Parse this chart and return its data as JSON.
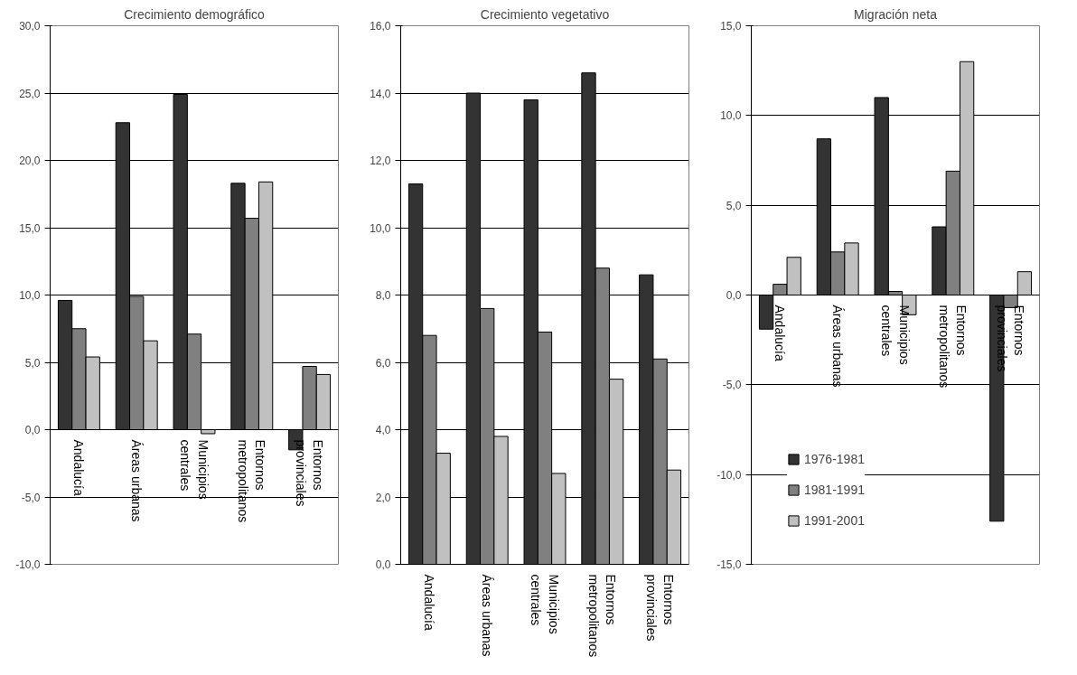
{
  "chart_data": [
    {
      "type": "bar",
      "title": "Crecimiento demográfico",
      "categories": [
        "Andalucía",
        "Áreas urbanas",
        "Municipios\ncentrales",
        "Entornos\nmetropolitanos",
        "Entornos\nprovinciales"
      ],
      "series": [
        {
          "color": "#333333",
          "values": [
            9.6,
            22.8,
            24.9,
            18.3,
            -1.5
          ]
        },
        {
          "color": "#808080",
          "values": [
            7.5,
            9.9,
            7.1,
            15.7,
            4.7
          ]
        },
        {
          "color": "#c0c0c0",
          "values": [
            5.4,
            6.6,
            -0.3,
            18.4,
            4.1
          ]
        }
      ],
      "ylim": [
        -10,
        30
      ],
      "yticks": [
        {
          "value": -10,
          "label": "-10,0"
        },
        {
          "value": -5,
          "label": "-5,0"
        },
        {
          "value": 0,
          "label": "0,0"
        },
        {
          "value": 5,
          "label": "5,0"
        },
        {
          "value": 10,
          "label": "10,0"
        },
        {
          "value": 15,
          "label": "15,0"
        },
        {
          "value": 20,
          "label": "20,0"
        },
        {
          "value": 25,
          "label": "25,0"
        },
        {
          "value": 30,
          "label": "30,0"
        }
      ],
      "grid": "y",
      "legend": false
    },
    {
      "type": "bar",
      "title": "Crecimiento vegetativo",
      "categories": [
        "Andalucía",
        "Áreas urbanas",
        "Municipios\ncentrales",
        "Entornos\nmetropolitanos",
        "Entornos\nprovinciales"
      ],
      "series": [
        {
          "color": "#333333",
          "values": [
            11.3,
            14.0,
            13.8,
            14.6,
            8.6
          ]
        },
        {
          "color": "#808080",
          "values": [
            6.8,
            7.6,
            6.9,
            8.8,
            6.1
          ]
        },
        {
          "color": "#c0c0c0",
          "values": [
            3.3,
            3.8,
            2.7,
            5.5,
            2.8
          ]
        }
      ],
      "ylim": [
        0,
        16
      ],
      "yticks": [
        {
          "value": 0,
          "label": "0,0"
        },
        {
          "value": 2,
          "label": "2,0"
        },
        {
          "value": 4,
          "label": "4,0"
        },
        {
          "value": 6,
          "label": "6,0"
        },
        {
          "value": 8,
          "label": "8,0"
        },
        {
          "value": 10,
          "label": "10,0"
        },
        {
          "value": 12,
          "label": "12,0"
        },
        {
          "value": 14,
          "label": "14,0"
        },
        {
          "value": 16,
          "label": "16,0"
        }
      ],
      "grid": "y",
      "legend": false
    },
    {
      "type": "bar",
      "title": "Migración neta",
      "categories": [
        "Andalucía",
        "Áreas urbanas",
        "Municipios\ncentrales",
        "Entornos\nmetropolitanos",
        "Entornos\nprovinciales"
      ],
      "series": [
        {
          "name": "1976-1981",
          "color": "#333333",
          "values": [
            -1.9,
            8.7,
            11.0,
            3.8,
            -12.6
          ]
        },
        {
          "name": "1981-1991",
          "color": "#808080",
          "values": [
            0.6,
            2.4,
            0.2,
            6.9,
            -0.7
          ]
        },
        {
          "name": "1991-2001",
          "color": "#c0c0c0",
          "values": [
            2.1,
            2.9,
            -1.1,
            13.0,
            1.3
          ]
        }
      ],
      "ylim": [
        -15,
        15
      ],
      "yticks": [
        {
          "value": -15,
          "label": "-15,0"
        },
        {
          "value": -10,
          "label": "-10,0"
        },
        {
          "value": -5,
          "label": "-5,0"
        },
        {
          "value": 0,
          "label": "0,0"
        },
        {
          "value": 5,
          "label": "5,0"
        },
        {
          "value": 10,
          "label": "10,0"
        },
        {
          "value": 15,
          "label": "15,0"
        }
      ],
      "grid": "y",
      "legend": "bottom left"
    }
  ]
}
